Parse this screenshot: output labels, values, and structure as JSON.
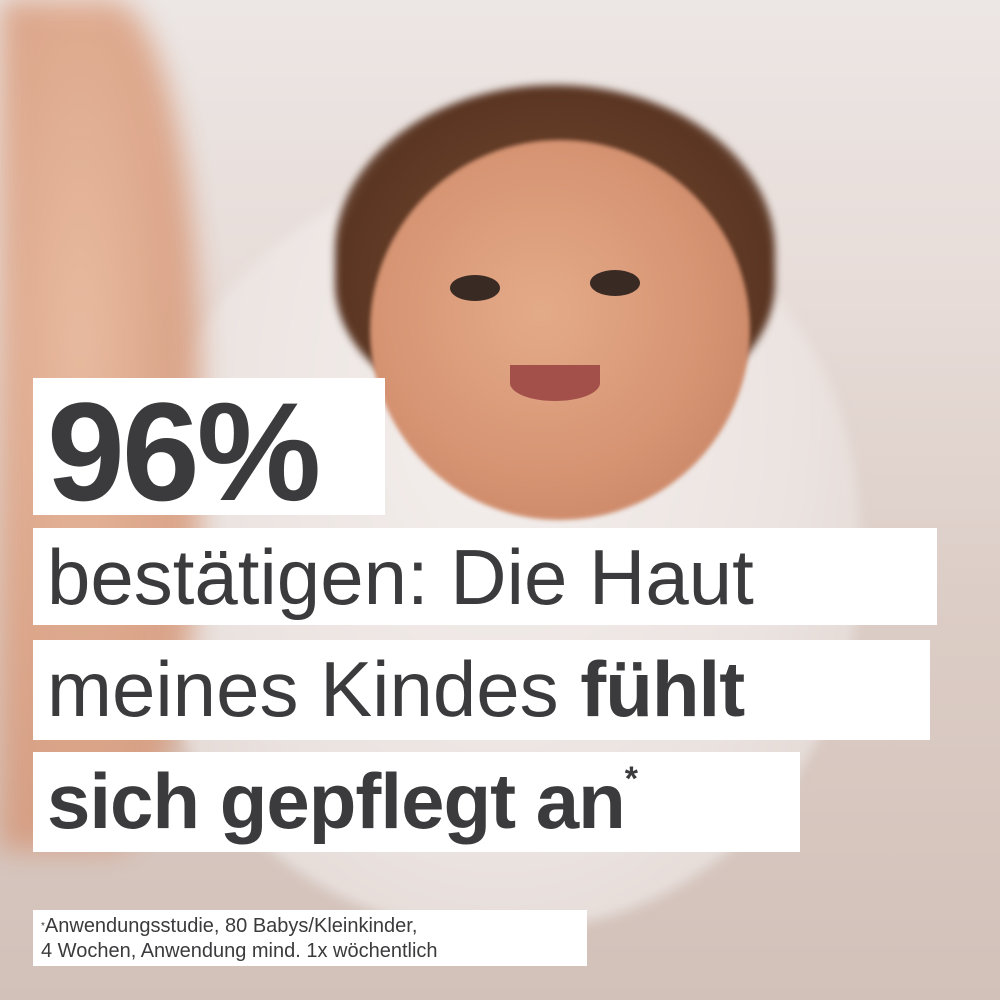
{
  "headline": {
    "percent": "96%",
    "line1": "bestätigen: Die Haut",
    "line2_regular": "meines Kindes ",
    "line2_bold": "fühlt",
    "line3": "sich gepflegt an",
    "asterisk": "*"
  },
  "footnote": {
    "asterisk": "*",
    "line1": "Anwendungsstudie, 80 Babys/Kleinkinder,",
    "line2": "4 Wochen, Anwendung mind. 1x wöchentlich"
  },
  "colors": {
    "text": "#3b3a3c",
    "box": "#ffffff"
  }
}
